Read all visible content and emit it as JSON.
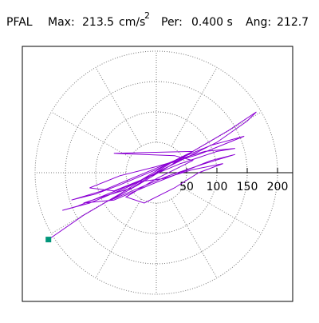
{
  "header": {
    "station": "PFAL",
    "max_label": "Max:",
    "max_value": 213.5,
    "max_unit": "cm/s",
    "max_unit_power": "2",
    "period_label": "Per:",
    "period_value": "0.400 s",
    "angle_label": "Ang:",
    "angle_value": 212.7
  },
  "chart_data": {
    "type": "polar-trace",
    "rlim": [
      0,
      200
    ],
    "rticks": [
      50,
      100,
      150,
      200
    ],
    "grid": true,
    "series": [
      {
        "color": "#8b00d4",
        "marker_color": "#00967a",
        "x": [
          -178,
          -120,
          -60,
          -20,
          10,
          40,
          20,
          -30,
          -80,
          -130,
          -155,
          -110,
          -50,
          0,
          50,
          100,
          150,
          165,
          120,
          60,
          0,
          -60,
          -100,
          -140,
          -90,
          -30,
          30,
          80,
          130,
          100,
          40,
          -20,
          -70,
          -110,
          -60,
          0,
          70,
          120,
          145,
          90,
          30,
          -40,
          -90,
          -120,
          -70,
          -10,
          40,
          90,
          130,
          80,
          20,
          -40,
          -75,
          -30,
          20,
          60,
          -70,
          -20,
          30,
          60,
          0,
          -50,
          -20,
          30,
          70,
          110,
          60,
          10,
          -30
        ],
        "y": [
          -110,
          -70,
          -35,
          -10,
          5,
          20,
          15,
          -15,
          -35,
          -55,
          -62,
          -50,
          -25,
          0,
          25,
          50,
          85,
          100,
          70,
          35,
          5,
          -20,
          -35,
          -45,
          -30,
          -5,
          20,
          35,
          40,
          35,
          15,
          -10,
          -30,
          -25,
          -5,
          10,
          30,
          50,
          60,
          45,
          20,
          -25,
          -40,
          -50,
          -45,
          -20,
          0,
          20,
          30,
          15,
          -5,
          -30,
          -45,
          -20,
          10,
          35,
          32,
          30,
          28,
          20,
          -10,
          -40,
          -50,
          -25,
          0,
          15,
          5,
          -10,
          -15
        ]
      }
    ]
  }
}
